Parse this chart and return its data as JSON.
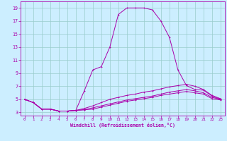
{
  "xlabel": "Windchill (Refroidissement éolien,°C)",
  "background_color": "#cceeff",
  "grid_color": "#99cccc",
  "line_color": "#aa00aa",
  "spine_color": "#aa00aa",
  "xlim": [
    -0.5,
    23.5
  ],
  "ylim": [
    2.5,
    20
  ],
  "xticks": [
    0,
    1,
    2,
    3,
    4,
    5,
    6,
    7,
    8,
    9,
    10,
    11,
    12,
    13,
    14,
    15,
    16,
    17,
    18,
    19,
    20,
    21,
    22,
    23
  ],
  "yticks": [
    3,
    5,
    7,
    9,
    11,
    13,
    15,
    17,
    19
  ],
  "line1_x": [
    0,
    1,
    2,
    3,
    4,
    5,
    6,
    7,
    8,
    9,
    10,
    11,
    12,
    13,
    14,
    15,
    16,
    17,
    18,
    19,
    20,
    21,
    22,
    23
  ],
  "line1_y": [
    5,
    4.5,
    3.5,
    3.5,
    3.2,
    3.2,
    3.3,
    6.3,
    9.5,
    10.0,
    13.0,
    18.0,
    19.0,
    19.0,
    19.0,
    18.7,
    17.0,
    14.5,
    9.5,
    7.1,
    6.5,
    6.4,
    5.5,
    5.0
  ],
  "line2_x": [
    0,
    1,
    2,
    3,
    4,
    5,
    6,
    7,
    8,
    9,
    10,
    11,
    12,
    13,
    14,
    15,
    16,
    17,
    18,
    19,
    20,
    21,
    22,
    23
  ],
  "line2_y": [
    5,
    4.5,
    3.5,
    3.5,
    3.2,
    3.2,
    3.3,
    3.6,
    4.0,
    4.5,
    5.0,
    5.3,
    5.6,
    5.8,
    6.1,
    6.3,
    6.6,
    6.9,
    7.1,
    7.3,
    7.0,
    6.5,
    5.6,
    5.1
  ],
  "line3_x": [
    0,
    1,
    2,
    3,
    4,
    5,
    6,
    7,
    8,
    9,
    10,
    11,
    12,
    13,
    14,
    15,
    16,
    17,
    18,
    19,
    20,
    21,
    22,
    23
  ],
  "line3_y": [
    5,
    4.5,
    3.5,
    3.5,
    3.2,
    3.2,
    3.3,
    3.4,
    3.7,
    4.0,
    4.3,
    4.6,
    4.9,
    5.1,
    5.3,
    5.5,
    5.8,
    6.1,
    6.3,
    6.5,
    6.3,
    6.0,
    5.3,
    5.0
  ],
  "line4_x": [
    0,
    1,
    2,
    3,
    4,
    5,
    6,
    7,
    8,
    9,
    10,
    11,
    12,
    13,
    14,
    15,
    16,
    17,
    18,
    19,
    20,
    21,
    22,
    23
  ],
  "line4_y": [
    5,
    4.5,
    3.5,
    3.5,
    3.2,
    3.2,
    3.3,
    3.4,
    3.5,
    3.8,
    4.1,
    4.4,
    4.7,
    4.9,
    5.1,
    5.3,
    5.6,
    5.8,
    6.0,
    6.2,
    6.0,
    5.8,
    5.1,
    4.9
  ]
}
